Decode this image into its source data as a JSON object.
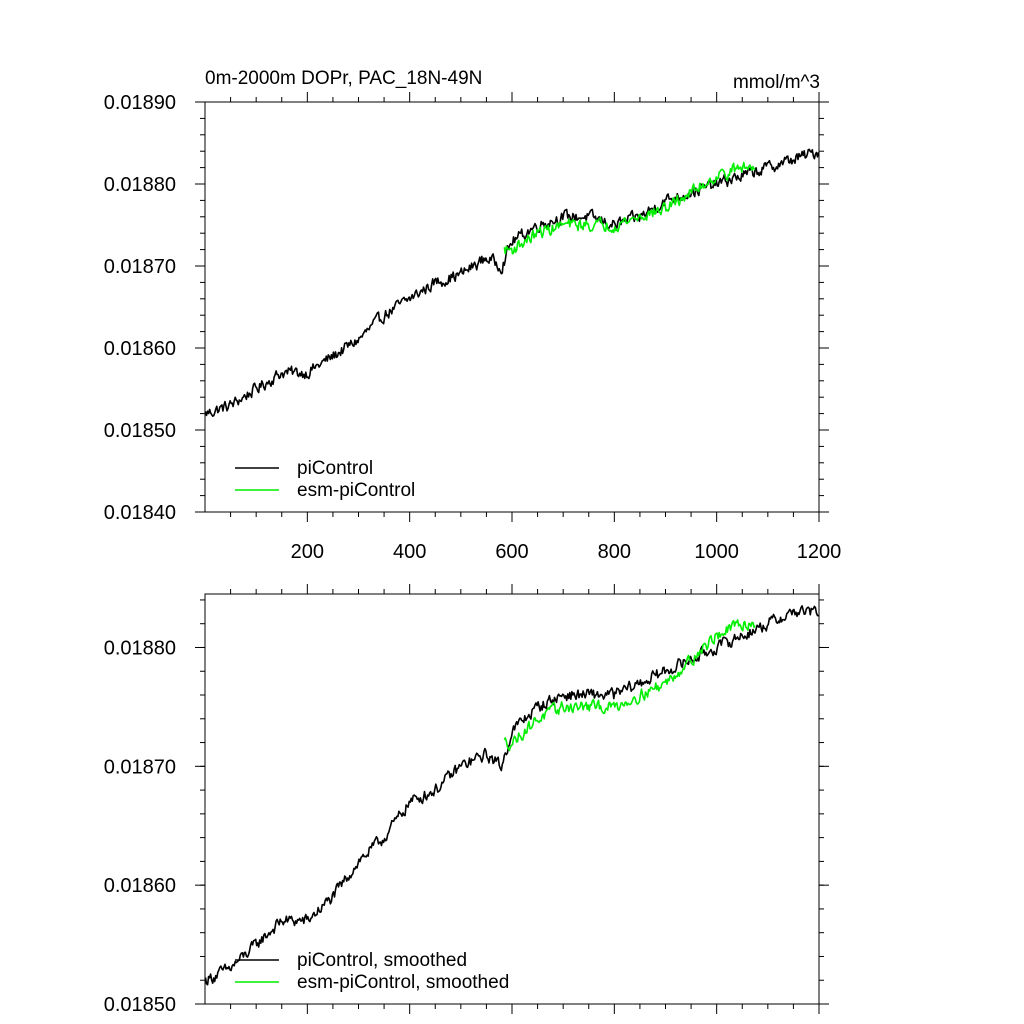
{
  "chart_data": [
    {
      "type": "line",
      "title": "0m-2000m DOPr, PAC_18N-49N",
      "units": "mmol/m^3",
      "xlim": [
        0,
        1200
      ],
      "ylim": [
        0.0184,
        0.0189
      ],
      "x_ticks": [
        200,
        400,
        600,
        800,
        1000,
        1200
      ],
      "x_tick_labels": [
        "200",
        "400",
        "600",
        "800",
        "1000",
        "1200"
      ],
      "y_ticks": [
        0.0184,
        0.0185,
        0.0186,
        0.0187,
        0.0188,
        0.0189
      ],
      "y_tick_labels": [
        "0.01840",
        "0.01850",
        "0.01860",
        "0.01870",
        "0.01880",
        "0.01890"
      ],
      "legend_position": "bottom-left",
      "series": [
        {
          "name": "piControl",
          "color": "#000000",
          "x": [
            1,
            50,
            100,
            150,
            200,
            250,
            300,
            350,
            400,
            450,
            500,
            550,
            580,
            600,
            650,
            700,
            750,
            800,
            850,
            900,
            950,
            1000,
            1050,
            1100,
            1150,
            1200
          ],
          "values": [
            0.01852,
            0.01853,
            0.01855,
            0.01857,
            0.01857,
            0.01859,
            0.01861,
            0.01864,
            0.01866,
            0.01868,
            0.01869,
            0.01871,
            0.0187,
            0.01873,
            0.01875,
            0.01876,
            0.01876,
            0.01875,
            0.01876,
            0.01878,
            0.01879,
            0.0188,
            0.01881,
            0.01882,
            0.01883,
            0.01884
          ]
        },
        {
          "name": "esm-piControl",
          "color": "#00ee00",
          "x": [
            585,
            600,
            650,
            700,
            750,
            800,
            850,
            900,
            950,
            1000,
            1050,
            1075
          ],
          "values": [
            0.01872,
            0.01872,
            0.01874,
            0.01875,
            0.01875,
            0.01875,
            0.01876,
            0.01877,
            0.01879,
            0.01881,
            0.01882,
            0.01882
          ]
        }
      ]
    },
    {
      "type": "line",
      "title": "",
      "xlim": [
        0,
        1200
      ],
      "ylim": [
        0.0185,
        0.018845
      ],
      "y_ticks": [
        0.0185,
        0.0186,
        0.0187,
        0.0188
      ],
      "y_tick_labels": [
        "0.01850",
        "0.01860",
        "0.01870",
        "0.01880"
      ],
      "legend_position": "bottom-left",
      "series": [
        {
          "name": "piControl, smoothed",
          "color": "#000000",
          "x": [
            1,
            50,
            100,
            150,
            200,
            250,
            300,
            350,
            400,
            450,
            500,
            550,
            580,
            600,
            650,
            700,
            750,
            800,
            850,
            900,
            950,
            1000,
            1050,
            1100,
            1150,
            1200
          ],
          "values": [
            0.01852,
            0.01853,
            0.01855,
            0.01857,
            0.01857,
            0.01859,
            0.01862,
            0.01864,
            0.01867,
            0.01868,
            0.0187,
            0.01871,
            0.0187,
            0.01873,
            0.01875,
            0.01876,
            0.01876,
            0.01876,
            0.01877,
            0.01878,
            0.01879,
            0.0188,
            0.01881,
            0.01882,
            0.01883,
            0.01883
          ]
        },
        {
          "name": "esm-piControl, smoothed",
          "color": "#00ee00",
          "x": [
            585,
            600,
            650,
            700,
            750,
            800,
            850,
            900,
            950,
            1000,
            1050,
            1075
          ],
          "values": [
            0.01872,
            0.01872,
            0.01874,
            0.01875,
            0.01875,
            0.01875,
            0.01876,
            0.01877,
            0.01879,
            0.01881,
            0.01882,
            0.01882
          ]
        }
      ]
    }
  ]
}
